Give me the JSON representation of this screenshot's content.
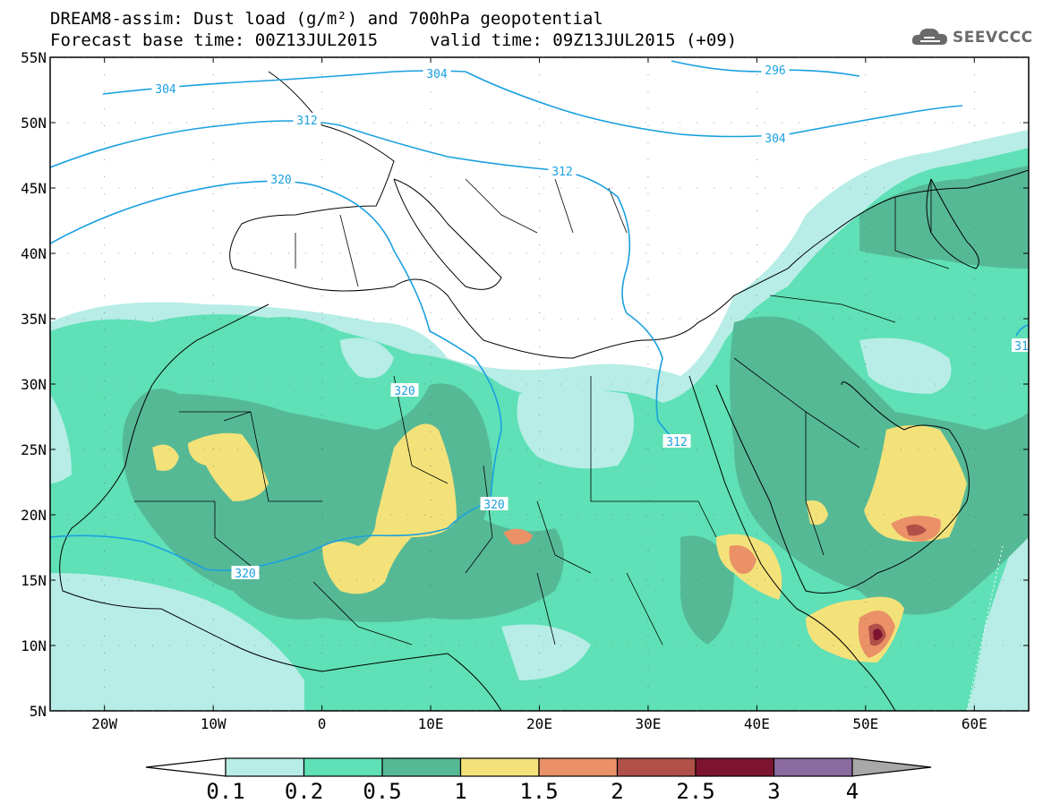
{
  "title_line1": "DREAM8-assim: Dust load (g/m²) and 700hPa geopotential",
  "title_line2a": "Forecast base time: 00Z13JUL2015",
  "title_line2b": "valid time: 09Z13JUL2015 (+09)",
  "logo_text": "SEEVCCC",
  "lat_labels": [
    "55N",
    "50N",
    "45N",
    "40N",
    "35N",
    "30N",
    "25N",
    "20N",
    "15N",
    "10N",
    "5N"
  ],
  "lon_labels": [
    "20W",
    "10W",
    "0",
    "10E",
    "20E",
    "30E",
    "40E",
    "50E",
    "60E"
  ],
  "contour_labels": [
    "304",
    "304",
    "296",
    "312",
    "312",
    "304",
    "320",
    "320",
    "320",
    "320",
    "312",
    "31"
  ],
  "legend": {
    "ticks": [
      "0.1",
      "0.2",
      "0.5",
      "1",
      "1.5",
      "2",
      "2.5",
      "3",
      "4"
    ],
    "colors": [
      "#ffffff",
      "#b7ede6",
      "#5fe0b6",
      "#56b996",
      "#f3e27a",
      "#ea9168",
      "#b05048",
      "#7c1430",
      "#8b6aa0",
      "#a8a8a8"
    ]
  },
  "map": {
    "lon_range": [
      -25,
      65
    ],
    "lat_range": [
      5,
      55
    ]
  }
}
